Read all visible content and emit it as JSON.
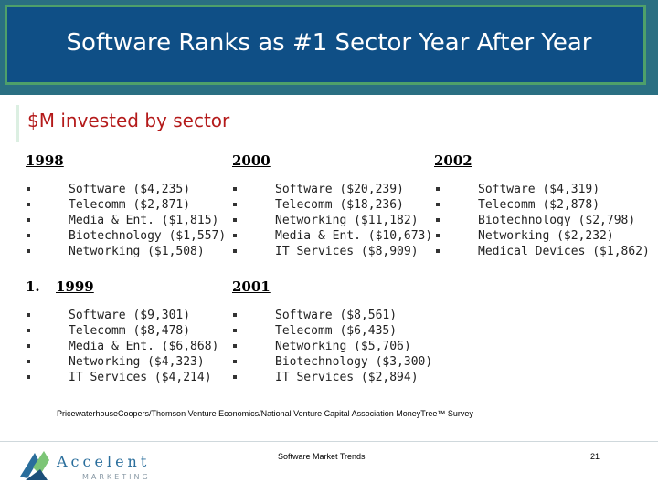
{
  "header": {
    "title": "Software Ranks as #1 Sector Year After Year"
  },
  "subtitle": "$M invested by sector",
  "years": {
    "y1998": {
      "label": "1998",
      "items": [
        "Software ($4,235)",
        "Telecomm ($2,871)",
        "Media & Ent. ($1,815)",
        "Biotechnology ($1,557)",
        "Networking ($1,508)"
      ]
    },
    "y1999": {
      "number": "1.",
      "label": "1999",
      "items": [
        "Software ($9,301)",
        "Telecomm ($8,478)",
        "Media & Ent. ($6,868)",
        "Networking ($4,323)",
        "IT Services ($4,214)"
      ]
    },
    "y2000": {
      "label": "2000",
      "items": [
        "Software ($20,239)",
        "Telecomm ($18,236)",
        "Networking ($11,182)",
        "Media & Ent. ($10,673)",
        "IT Services ($8,909)"
      ]
    },
    "y2001": {
      "label": "2001",
      "items": [
        "Software ($8,561)",
        "Telecomm ($6,435)",
        "Networking ($5,706)",
        "Biotechnology ($3,300)",
        "IT Services ($2,894)"
      ]
    },
    "y2002": {
      "label": "2002",
      "items": [
        "Software  ($4,319)",
        "Telecomm ($2,878)",
        "Biotechnology  ($2,798)",
        "Networking  ($2,232)",
        "Medical Devices ($1,862)"
      ]
    }
  },
  "source": "PricewaterhouseCoopers/Thomson Venture Economics/National Venture Capital Association MoneyTree™ Survey",
  "footer": {
    "center": "Software Market Trends",
    "page": "21"
  },
  "logo": {
    "word": "Accelent",
    "sub": "MARKETING"
  }
}
